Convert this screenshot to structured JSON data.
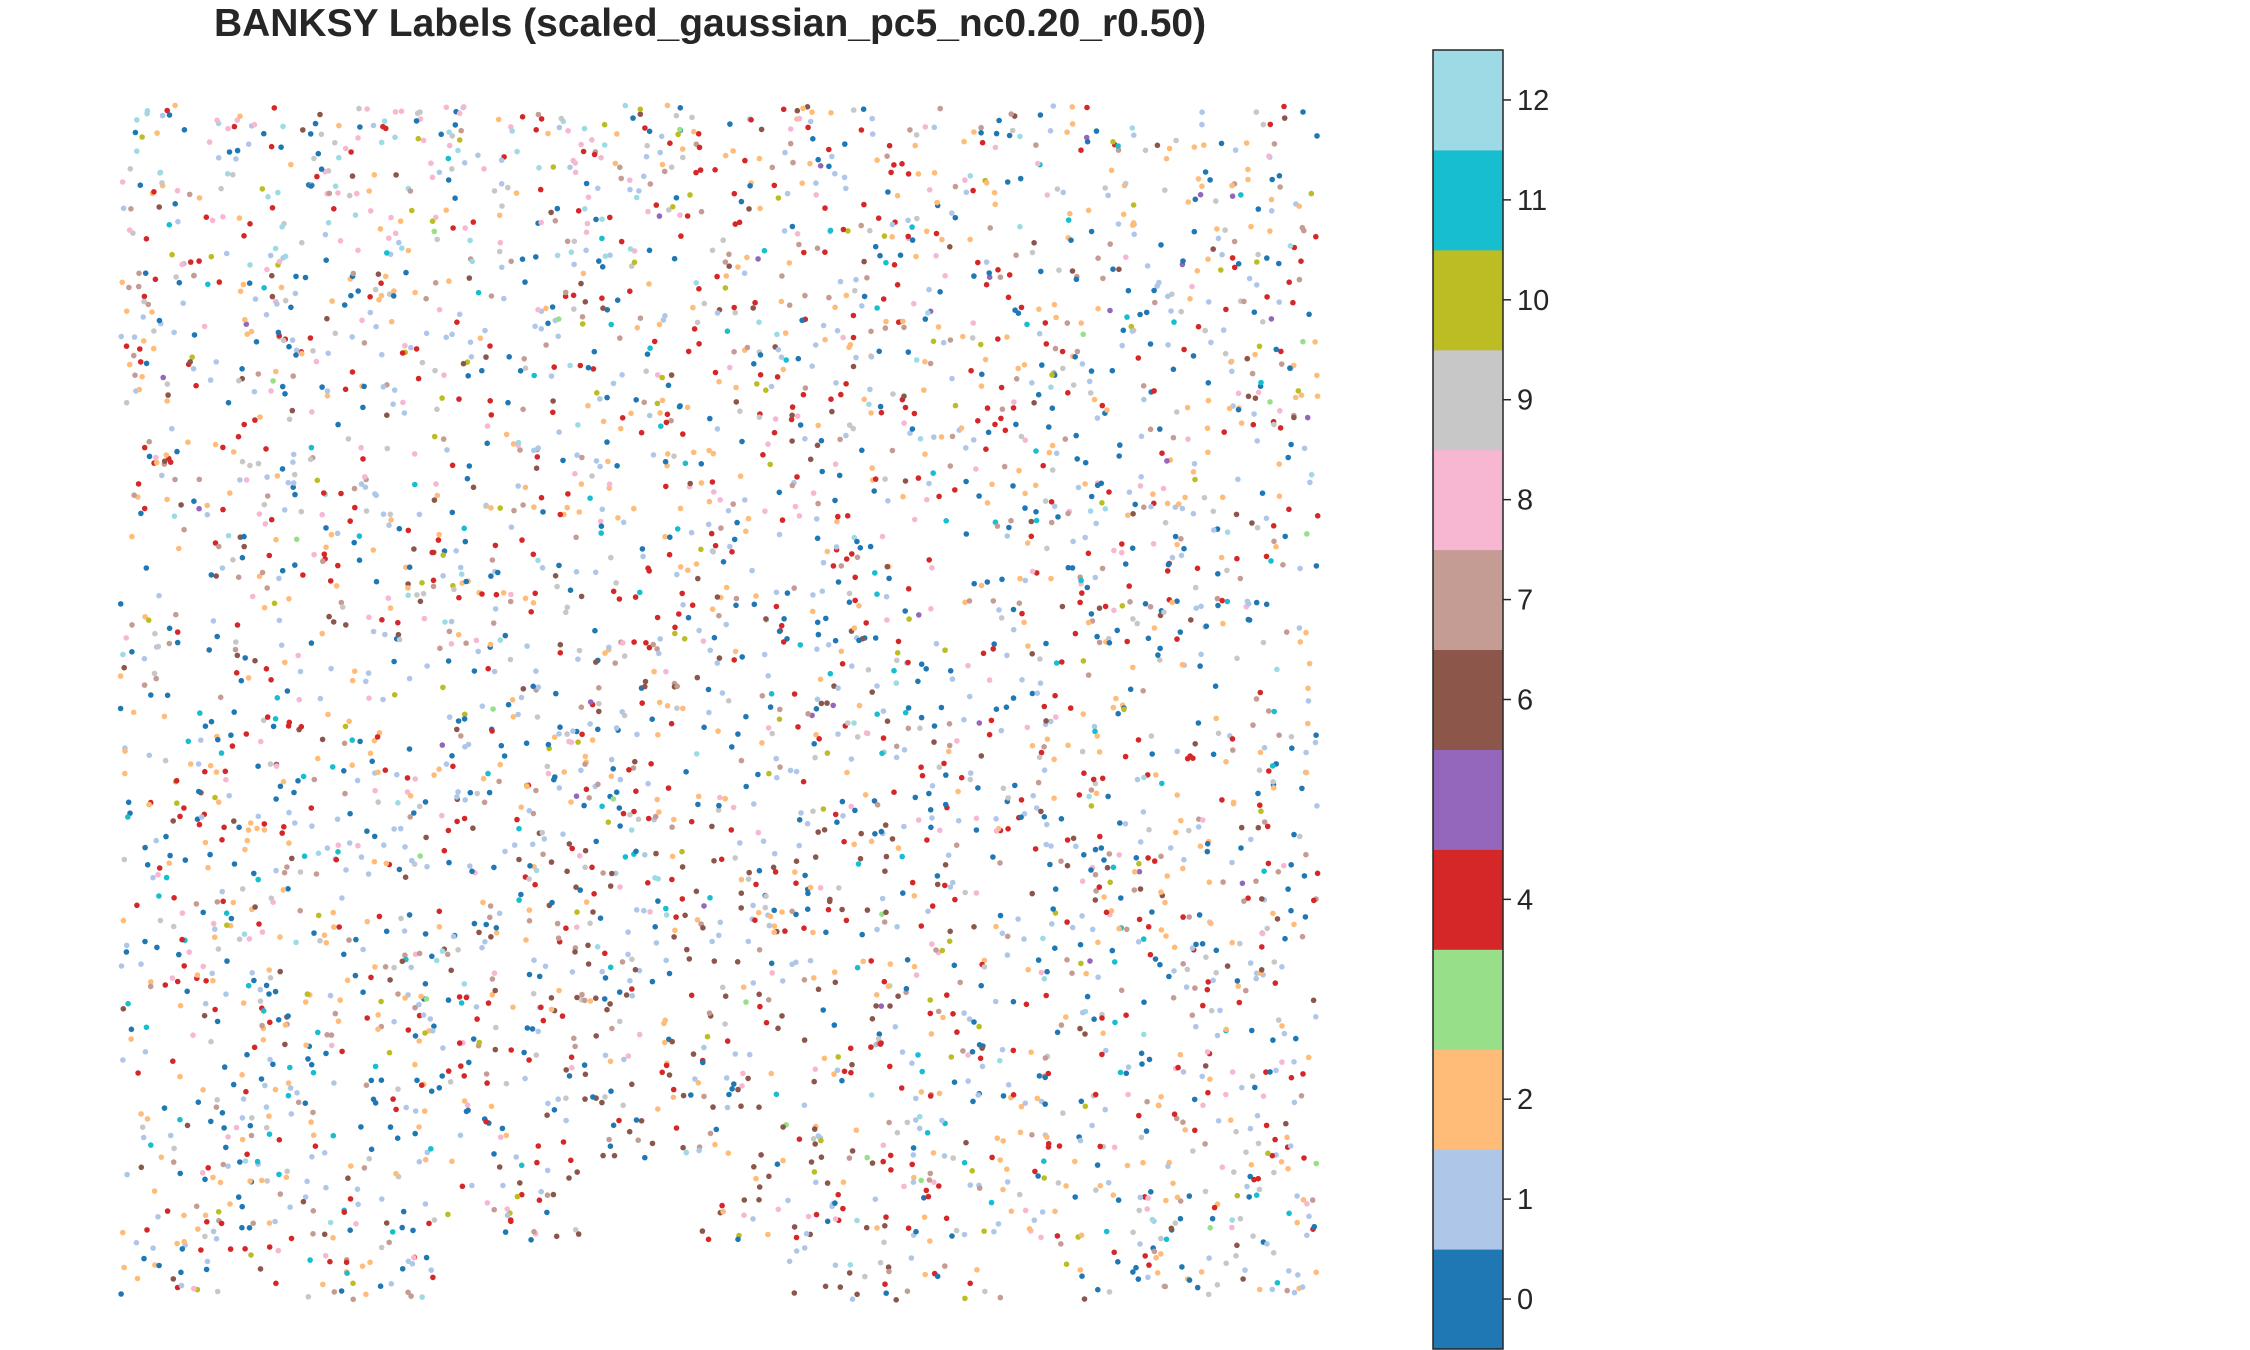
{
  "chart_data": {
    "type": "scatter",
    "title": "BANKSY Labels (scaled_gaussian_pc5_nc0.20_r0.50)",
    "xlabel": "",
    "ylabel": "",
    "axes_visible": false,
    "grid": false,
    "colormap": "tab20",
    "categories": [
      0,
      1,
      2,
      3,
      4,
      5,
      6,
      7,
      8,
      9,
      10,
      11,
      12
    ],
    "category_colors": [
      "#1f77b4",
      "#aec7e8",
      "#ffbb78",
      "#98df8a",
      "#d62728",
      "#9467bd",
      "#8c564b",
      "#c49c94",
      "#f7b6d2",
      "#c7c7c7",
      "#bcbd22",
      "#17becf",
      "#9edae5"
    ],
    "point_count_estimate": 4200,
    "colorbar": {
      "placement": "right",
      "range": [
        -0.5,
        12.5
      ],
      "tick_labels": [
        "0",
        "1",
        "2",
        "4",
        "6",
        "7",
        "8",
        "9",
        "10",
        "11",
        "12"
      ],
      "tick_values": [
        0,
        1,
        2,
        4,
        6,
        7,
        8,
        9,
        10,
        11,
        12
      ]
    }
  }
}
